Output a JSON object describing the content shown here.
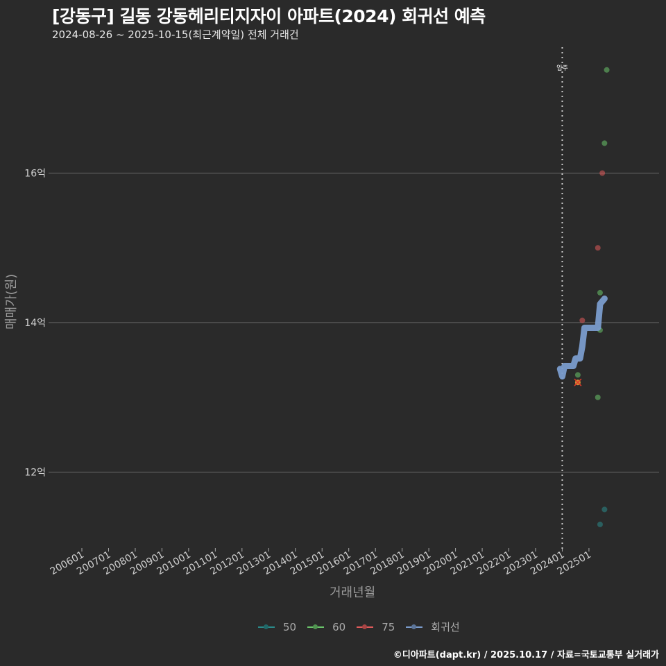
{
  "header": {
    "title": "[강동구] 길동 강동헤리티지자이 아파트(2024) 회귀선 예측",
    "subtitle": "2024-08-26 ~ 2025-10-15(최근계약일) 전체 거래건"
  },
  "footer": {
    "credit": "©디아파트(dapt.kr) / 2025.10.17 / 자료=국토교통부 실거래가"
  },
  "colors": {
    "background": "#2a2a2a",
    "grid": "#6a6a6a",
    "series_50": "#2a8a8a",
    "series_60": "#6ac46a",
    "series_75": "#e05a5a",
    "regression": "#7a9ccc",
    "marker_x": "#e03a2a"
  },
  "chart_data": {
    "type": "scatter",
    "title": "[강동구] 길동 강동헤리티지자이 아파트(2024) 회귀선 예측",
    "subtitle": "2024-08-26 ~ 2025-10-15(최근계약일) 전체 거래건",
    "xlabel": "거래년월",
    "ylabel": "매매가(원)",
    "x_ticks": [
      "200601",
      "200701",
      "200801",
      "200901",
      "201001",
      "201101",
      "201201",
      "201301",
      "201401",
      "201501",
      "201601",
      "201701",
      "201801",
      "201901",
      "202001",
      "202101",
      "202201",
      "202301",
      "202401",
      "202501"
    ],
    "y_ticks": [
      "12억",
      "14억",
      "16억"
    ],
    "y_tick_values": [
      12,
      14,
      16
    ],
    "ylim": [
      11.0,
      17.6
    ],
    "grid": true,
    "legend_position": "bottom",
    "annotations": [
      {
        "text": "입주",
        "x": "202401",
        "type": "vertical-dotted-line"
      }
    ],
    "series": [
      {
        "name": "50",
        "points": [
          {
            "x": "2025-08",
            "y": 11.5
          },
          {
            "x": "2025-06",
            "y": 11.3
          }
        ]
      },
      {
        "name": "60",
        "points": [
          {
            "x": "2025-09",
            "y": 17.38
          },
          {
            "x": "2025-08",
            "y": 16.4
          },
          {
            "x": "2025-06",
            "y": 14.4
          },
          {
            "x": "2025-06",
            "y": 13.9
          },
          {
            "x": "2024-08",
            "y": 13.3
          },
          {
            "x": "2025-05",
            "y": 13.0
          }
        ]
      },
      {
        "name": "75",
        "points": [
          {
            "x": "2025-07",
            "y": 16.0
          },
          {
            "x": "2025-05",
            "y": 15.0
          },
          {
            "x": "2024-10",
            "y": 14.03
          },
          {
            "x": "2024-08",
            "y": 13.2,
            "marker": "x"
          }
        ]
      },
      {
        "name": "회귀선",
        "type": "line",
        "points": [
          {
            "x": "2023-12",
            "y": 13.38
          },
          {
            "x": "2024-01",
            "y": 13.28
          },
          {
            "x": "2024-02",
            "y": 13.42
          },
          {
            "x": "2024-06",
            "y": 13.42
          },
          {
            "x": "2024-07",
            "y": 13.52
          },
          {
            "x": "2024-09",
            "y": 13.52
          },
          {
            "x": "2024-10",
            "y": 13.68
          },
          {
            "x": "2024-11",
            "y": 13.93
          },
          {
            "x": "2025-05",
            "y": 13.93
          },
          {
            "x": "2025-06",
            "y": 14.25
          },
          {
            "x": "2025-08",
            "y": 14.32
          }
        ]
      }
    ]
  },
  "legend": {
    "items": [
      {
        "label": "50",
        "color": "#2a8a8a"
      },
      {
        "label": "60",
        "color": "#6ac46a"
      },
      {
        "label": "75",
        "color": "#e05a5a"
      },
      {
        "label": "회귀선",
        "color": "#7a9ccc"
      }
    ]
  }
}
